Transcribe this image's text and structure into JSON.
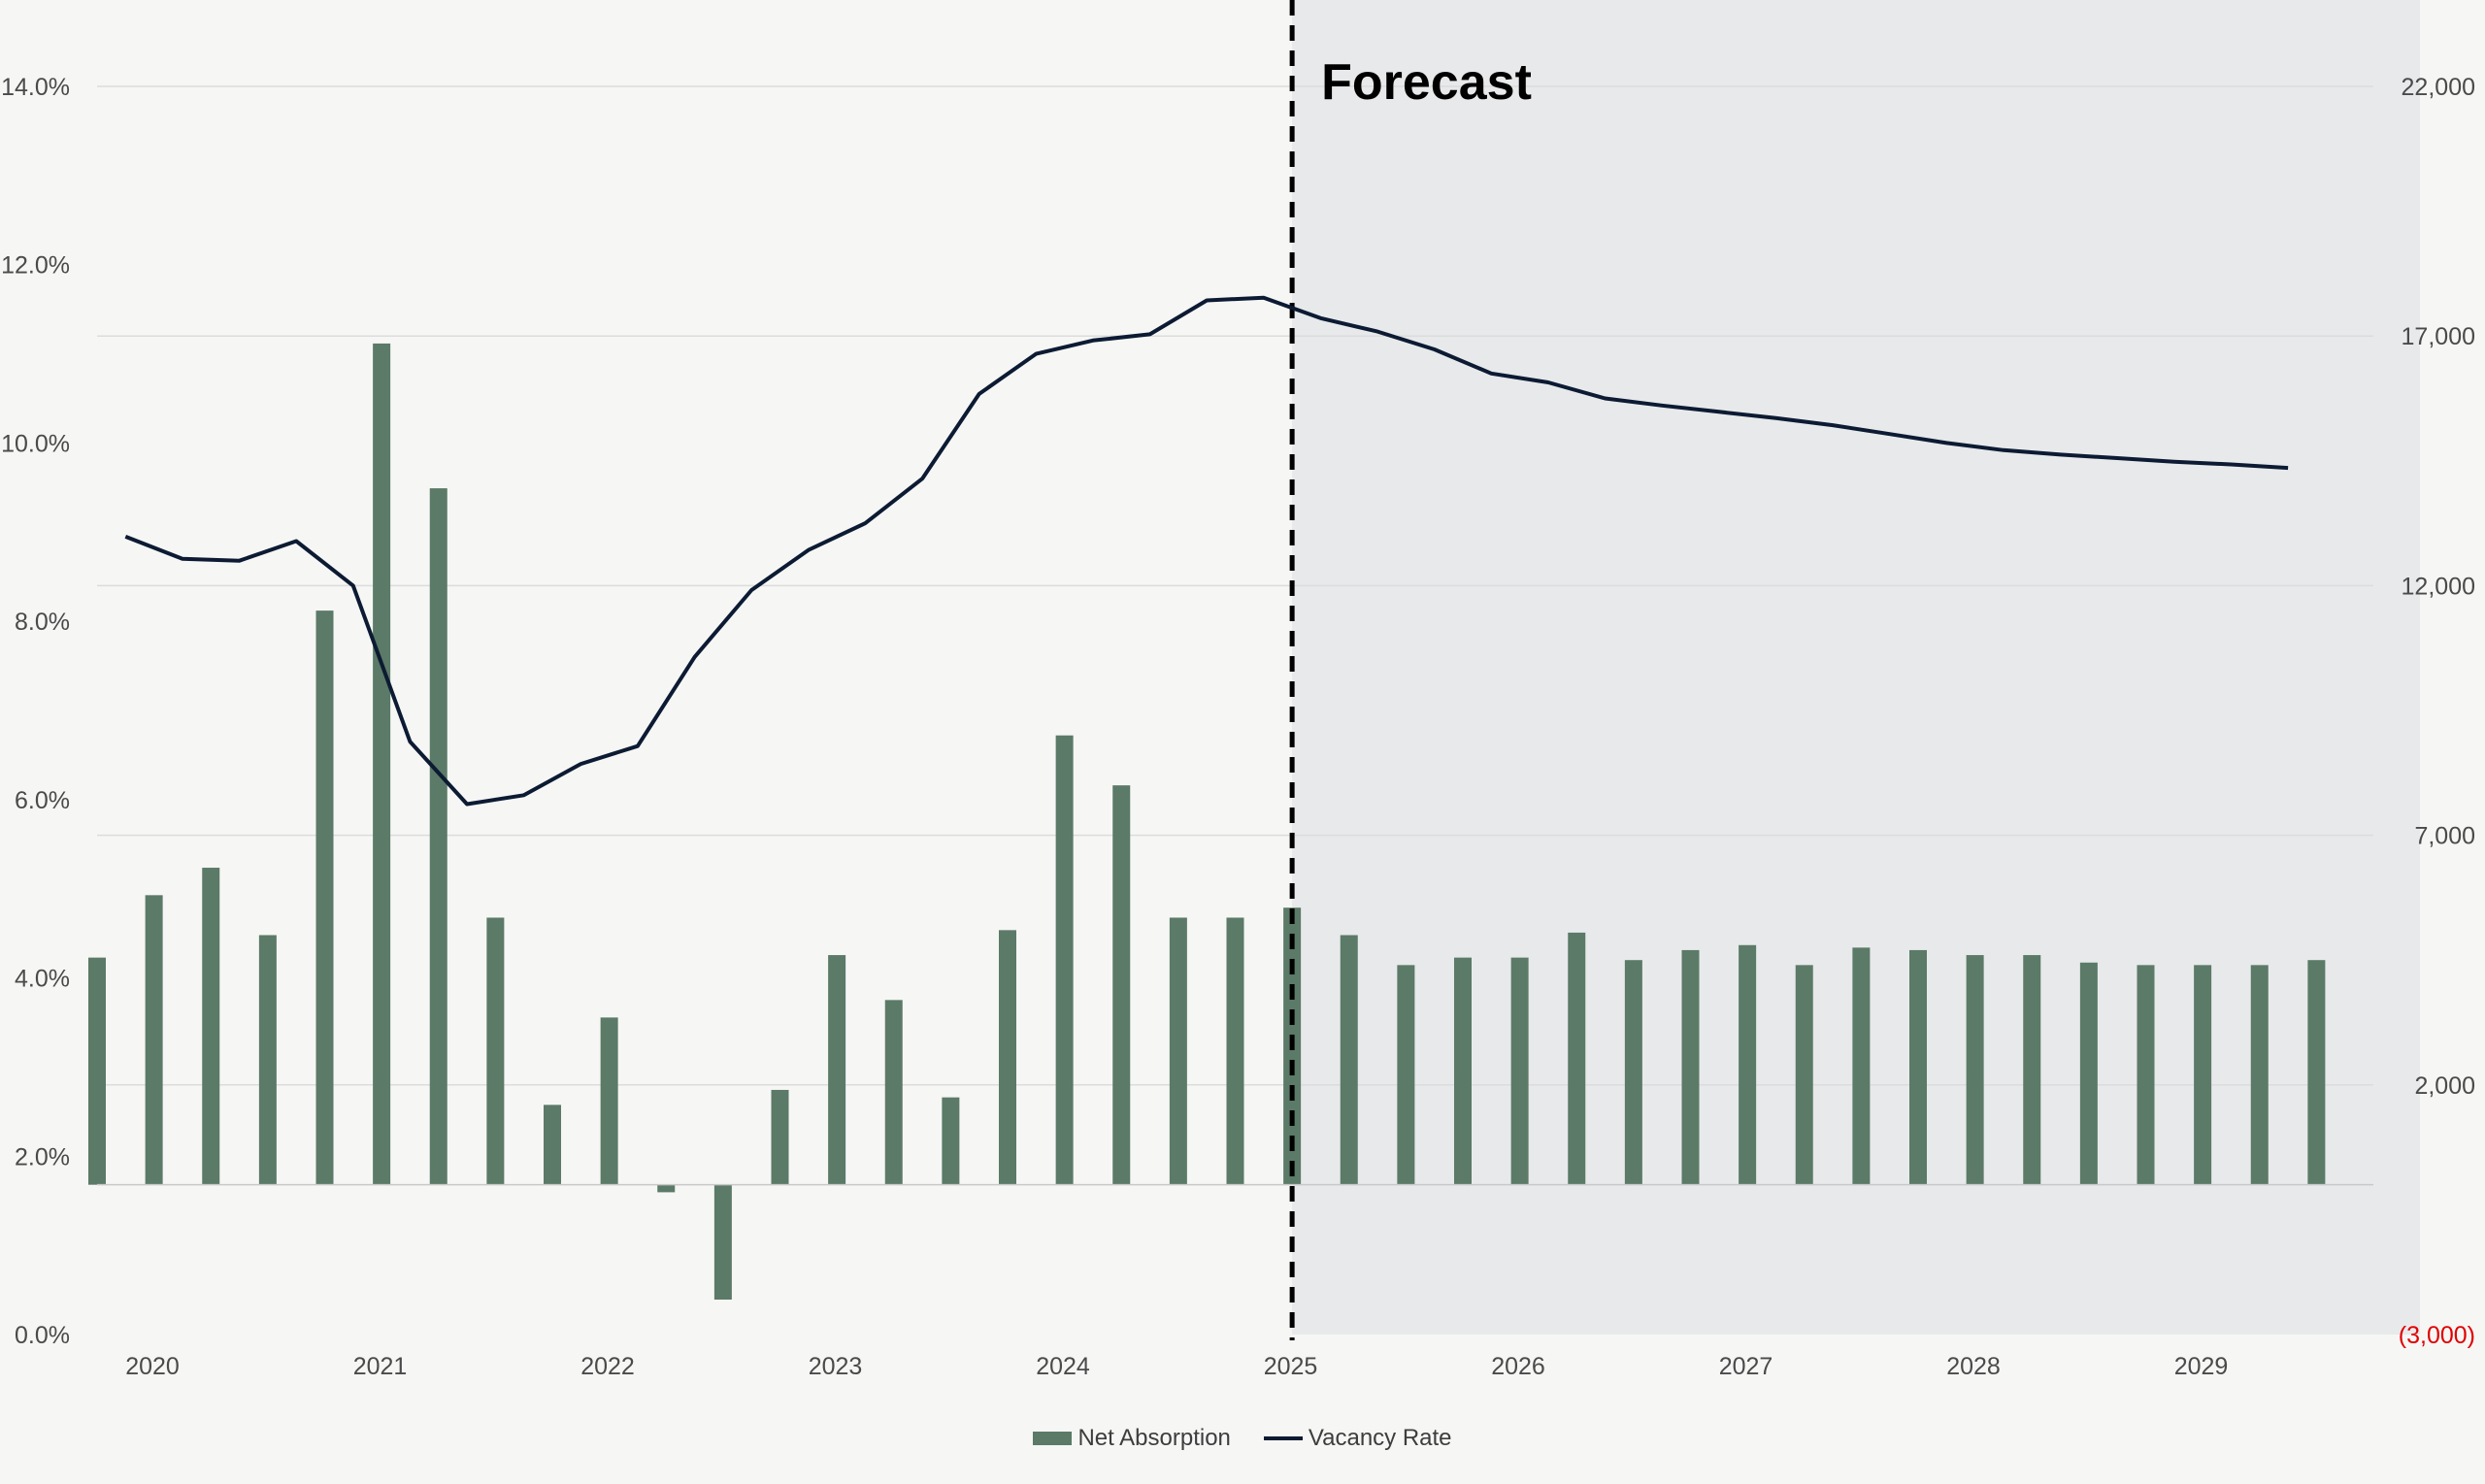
{
  "chart_data": {
    "type": "bar",
    "title": "",
    "forecast_label": "Forecast",
    "forecast_start_year": 2025.25,
    "x_ticks": [
      "2020",
      "2021",
      "2022",
      "2023",
      "2024",
      "2025",
      "2026",
      "2027",
      "2028",
      "2029"
    ],
    "y_left": {
      "ticks": [
        "0.0%",
        "2.0%",
        "4.0%",
        "6.0%",
        "8.0%",
        "10.0%",
        "12.0%",
        "14.0%"
      ],
      "range": [
        0,
        14
      ]
    },
    "y_right": {
      "ticks": [
        "(3,000)",
        "2,000",
        "7,000",
        "12,000",
        "17,000",
        "22,000"
      ],
      "range": [
        -3000,
        22000
      ],
      "negative_color": "#e00000"
    },
    "colors": {
      "bars": "#5b7a67",
      "line": "#0c1b33",
      "forecast_shade": "#e8e9eb",
      "grid": "#dcdcdc"
    },
    "legend": {
      "position": "bottom",
      "items": [
        {
          "label": "Net Absorption",
          "kind": "bar",
          "color": "#5b7a67"
        },
        {
          "label": "Vacancy Rate",
          "kind": "line",
          "color": "#0c1b33"
        }
      ]
    },
    "series": [
      {
        "name": "Net Absorption",
        "axis": "right",
        "x": [
          2020.0,
          2020.25,
          2020.5,
          2020.75,
          2021.0,
          2021.25,
          2021.5,
          2021.75,
          2022.0,
          2022.25,
          2022.5,
          2022.75,
          2023.0,
          2023.25,
          2023.5,
          2023.75,
          2024.0,
          2024.25,
          2024.5,
          2024.75,
          2025.0,
          2025.25,
          2025.5,
          2025.75,
          2026.0,
          2026.25,
          2026.5,
          2026.75,
          2027.0,
          2027.25,
          2027.5,
          2027.75,
          2028.0,
          2028.25,
          2028.5,
          2028.75,
          2029.0,
          2029.25,
          2029.5,
          2029.75
        ],
        "values": [
          4550,
          5800,
          6350,
          5000,
          11500,
          16850,
          13950,
          5350,
          1600,
          3350,
          -150,
          -2300,
          1900,
          4600,
          3700,
          1750,
          5100,
          9000,
          8000,
          5350,
          5350,
          5550,
          5000,
          4400,
          4550,
          4550,
          5050,
          4500,
          4700,
          4800,
          4400,
          4750,
          4700,
          4600,
          4600,
          4450,
          4400,
          4400,
          4400,
          4500
        ]
      },
      {
        "name": "Vacancy Rate",
        "axis": "left",
        "x": [
          2020.125,
          2020.375,
          2020.625,
          2020.875,
          2021.125,
          2021.375,
          2021.625,
          2021.875,
          2022.125,
          2022.375,
          2022.625,
          2022.875,
          2023.125,
          2023.375,
          2023.625,
          2023.875,
          2024.125,
          2024.375,
          2024.625,
          2024.875,
          2025.125,
          2025.375,
          2025.625,
          2025.875,
          2026.125,
          2026.375,
          2026.625,
          2026.875,
          2027.125,
          2027.375,
          2027.625,
          2027.875,
          2028.125,
          2028.375,
          2028.625,
          2028.875,
          2029.125,
          2029.375,
          2029.625
        ],
        "values": [
          8.95,
          8.7,
          8.68,
          8.9,
          8.4,
          6.65,
          5.95,
          6.05,
          6.4,
          6.6,
          7.6,
          8.35,
          8.8,
          9.1,
          9.6,
          10.55,
          11.0,
          11.15,
          11.22,
          11.6,
          11.63,
          11.4,
          11.25,
          11.05,
          10.78,
          10.68,
          10.5,
          10.42,
          10.35,
          10.28,
          10.2,
          10.1,
          10.0,
          9.92,
          9.87,
          9.83,
          9.79,
          9.76,
          9.72
        ]
      }
    ]
  }
}
